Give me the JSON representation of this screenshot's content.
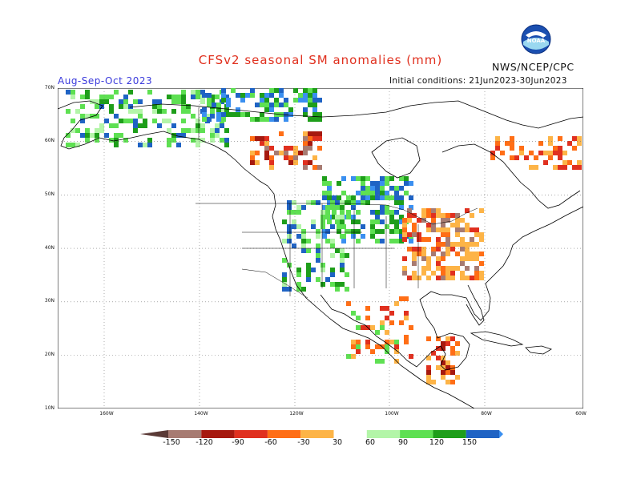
{
  "header": {
    "title": "CFSv2 seasonal SM anomalies (mm)",
    "period": "Aug-Sep-Oct 2023",
    "initial_conditions": "Initial conditions: 21Jun2023-30Jun2023",
    "agency": "NWS/NCEP/CPC",
    "logo_text": "NOAA"
  },
  "map": {
    "lat_labels": [
      "70N",
      "60N",
      "50N",
      "40N",
      "30N",
      "20N",
      "10N"
    ],
    "lon_labels": [
      "160W",
      "140W",
      "120W",
      "100W",
      "80W",
      "60W"
    ]
  },
  "colorbar": {
    "labels": [
      "-150",
      "-120",
      "-90",
      "-60",
      "-30",
      "30",
      "60",
      "90",
      "120",
      "150"
    ],
    "colors": [
      "#5a3a36",
      "#a77b72",
      "#a6190f",
      "#e0301f",
      "#ff6e16",
      "#fdb447",
      "#ffffff",
      "#b3f5a8",
      "#5ee052",
      "#1e9e1a",
      "#1f63c4",
      "#3a8ff0"
    ]
  },
  "colors": {
    "title": "#e0301e",
    "period": "#3a3adc",
    "land_outline": "#000000",
    "grid": "#777777"
  }
}
